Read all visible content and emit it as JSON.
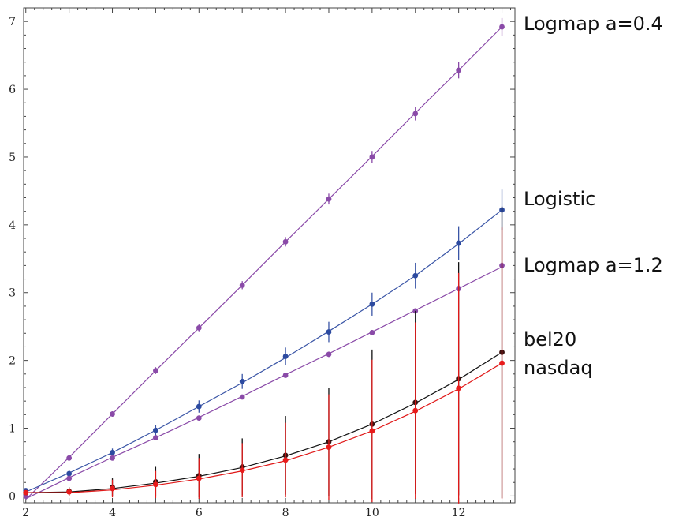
{
  "chart_data": {
    "type": "line",
    "xlim": [
      1.95,
      13.3
    ],
    "ylim": [
      -0.1,
      7.2
    ],
    "x_ticks": [
      2,
      4,
      6,
      8,
      10,
      12
    ],
    "y_ticks": [
      0,
      1,
      2,
      3,
      4,
      5,
      6,
      7
    ],
    "series": [
      {
        "name": "Logmap a=0.4",
        "color": "#8a4aa8",
        "marker_color": "#8a4aa8",
        "x": [
          2,
          3,
          4,
          5,
          6,
          7,
          8,
          9,
          10,
          11,
          12,
          13
        ],
        "y": [
          0.0,
          0.56,
          1.21,
          1.85,
          2.48,
          3.11,
          3.75,
          4.38,
          5.0,
          5.64,
          6.28,
          6.92
        ],
        "err": [
          0.02,
          0.03,
          0.04,
          0.05,
          0.05,
          0.06,
          0.07,
          0.08,
          0.09,
          0.1,
          0.12,
          0.13
        ],
        "fit_y": [
          -0.05,
          0.57,
          1.21,
          1.85,
          2.48,
          3.11,
          3.75,
          4.38,
          5.01,
          5.65,
          6.28,
          6.92
        ]
      },
      {
        "name": "Logistic",
        "color": "#3a55a6",
        "marker_color": "#2c4aa0",
        "x": [
          2,
          3,
          4,
          5,
          6,
          7,
          8,
          9,
          10,
          11,
          12,
          13
        ],
        "y": [
          0.08,
          0.33,
          0.64,
          0.97,
          1.32,
          1.69,
          2.06,
          2.42,
          2.83,
          3.25,
          3.73,
          4.22
        ],
        "err": [
          0.03,
          0.05,
          0.06,
          0.08,
          0.09,
          0.11,
          0.13,
          0.15,
          0.17,
          0.19,
          0.25,
          0.3
        ],
        "fit_y": [
          0.06,
          0.34,
          0.64,
          0.97,
          1.32,
          1.67,
          2.04,
          2.43,
          2.83,
          3.25,
          3.72,
          4.22
        ]
      },
      {
        "name": "Logmap a=1.2",
        "color": "#8a4aa8",
        "marker_color": "#8a4aa8",
        "x": [
          2,
          3,
          4,
          5,
          6,
          7,
          8,
          9,
          10,
          11,
          12,
          13
        ],
        "y": [
          0.0,
          0.26,
          0.56,
          0.86,
          1.15,
          1.46,
          1.78,
          2.09,
          2.41,
          2.73,
          3.06,
          3.4
        ],
        "err": [
          0.02,
          0.02,
          0.02,
          0.03,
          0.03,
          0.03,
          0.03,
          0.04,
          0.04,
          0.04,
          0.05,
          0.05
        ],
        "fit_y": [
          -0.04,
          0.27,
          0.57,
          0.86,
          1.16,
          1.47,
          1.79,
          2.1,
          2.42,
          2.74,
          3.06,
          3.38
        ]
      },
      {
        "name": "bel20",
        "color": "#111111",
        "marker_color": "#3a1210",
        "x": [
          2,
          3,
          4,
          5,
          6,
          7,
          8,
          9,
          10,
          11,
          12,
          13
        ],
        "y": [
          0.05,
          0.07,
          0.13,
          0.21,
          0.3,
          0.43,
          0.6,
          0.8,
          1.06,
          1.38,
          1.73,
          2.12
        ],
        "err": [
          0.02,
          0.06,
          0.13,
          0.22,
          0.32,
          0.42,
          0.58,
          0.8,
          1.1,
          1.35,
          1.72,
          2.15
        ],
        "fit_y": [
          0.05,
          0.06,
          0.11,
          0.19,
          0.29,
          0.42,
          0.59,
          0.8,
          1.06,
          1.37,
          1.72,
          2.12
        ]
      },
      {
        "name": "nasdaq",
        "color": "#e01818",
        "marker_color": "#e81b1b",
        "x": [
          2,
          3,
          4,
          5,
          6,
          7,
          8,
          9,
          10,
          11,
          12,
          13
        ],
        "y": [
          0.05,
          0.06,
          0.11,
          0.17,
          0.26,
          0.38,
          0.53,
          0.72,
          0.96,
          1.26,
          1.59,
          1.96
        ],
        "err": [
          0.02,
          0.06,
          0.13,
          0.2,
          0.3,
          0.4,
          0.55,
          0.78,
          1.05,
          1.3,
          1.7,
          2.0
        ],
        "fit_y": [
          0.05,
          0.05,
          0.09,
          0.16,
          0.25,
          0.37,
          0.52,
          0.72,
          0.96,
          1.25,
          1.58,
          1.96
        ]
      }
    ],
    "labels": [
      "Logmap a=0.4",
      "Logistic",
      "Logmap a=1.2",
      "bel20",
      "nasdaq"
    ]
  }
}
